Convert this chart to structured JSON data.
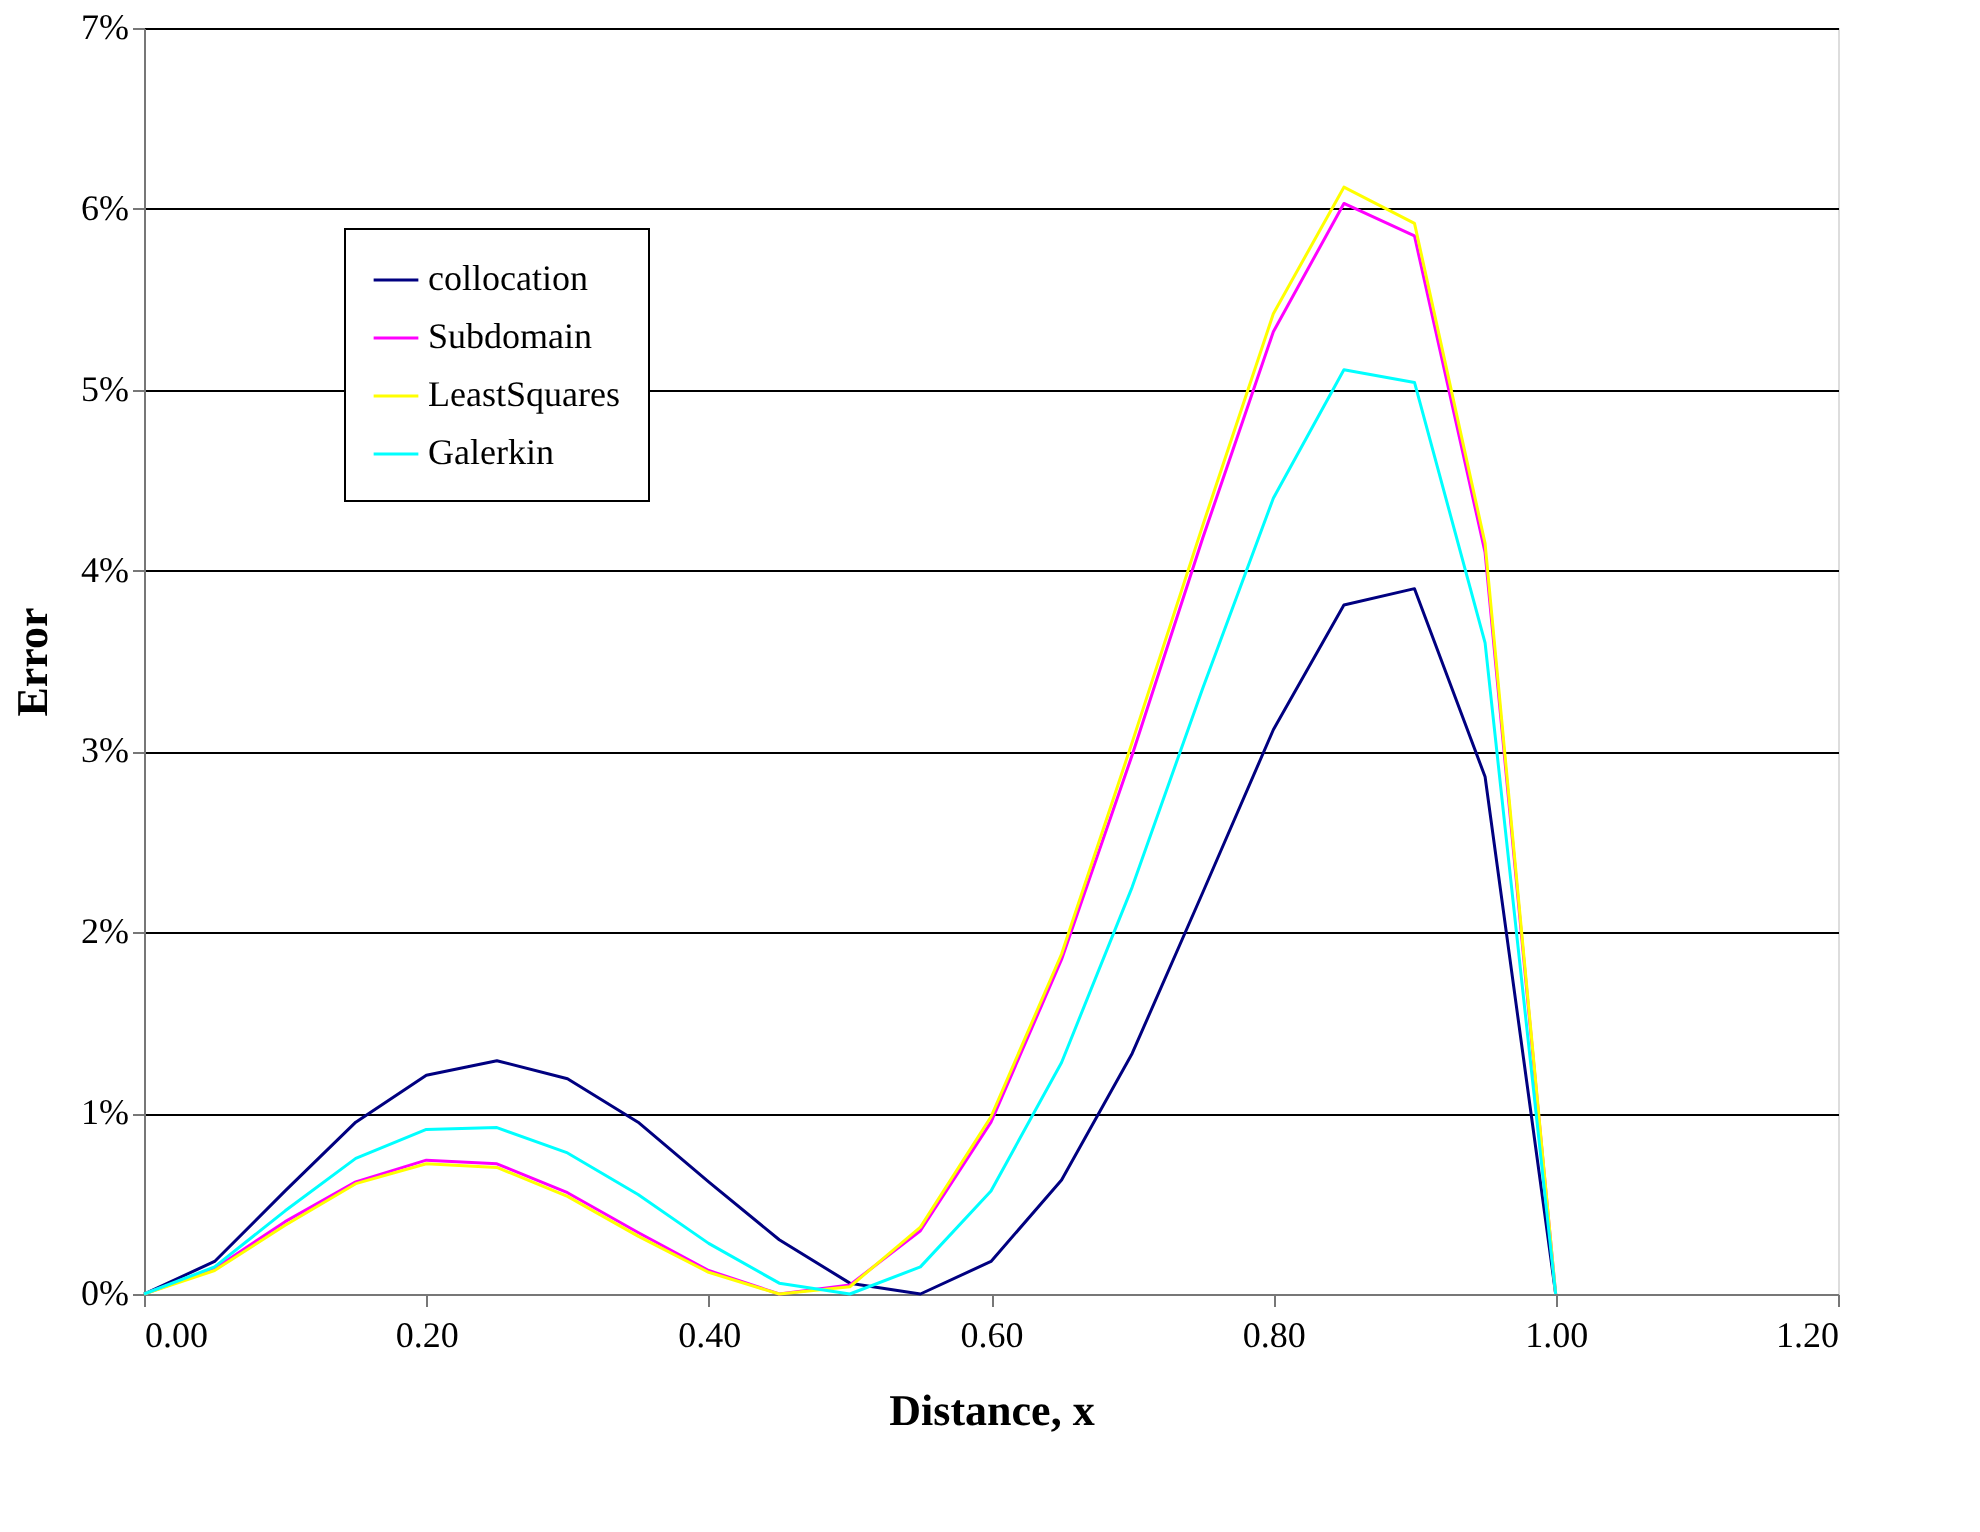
{
  "chart_data": {
    "type": "line",
    "xlabel": "Distance, x",
    "ylabel": "Error",
    "x": [
      0,
      0.05,
      0.1,
      0.15,
      0.2,
      0.25,
      0.3,
      0.35,
      0.4,
      0.45,
      0.5,
      0.55,
      0.6,
      0.65,
      0.7,
      0.75,
      0.8,
      0.85,
      0.9,
      0.95,
      1.0
    ],
    "series": [
      {
        "name": "collocation",
        "color": "#000080",
        "values": [
          0,
          0.18,
          0.57,
          0.95,
          1.21,
          1.29,
          1.19,
          0.95,
          0.62,
          0.3,
          0.06,
          0.0,
          0.18,
          0.63,
          1.33,
          2.22,
          3.12,
          3.81,
          3.9,
          2.86,
          0
        ]
      },
      {
        "name": "Subdomain",
        "color": "#ff00ff",
        "values": [
          0,
          0.14,
          0.4,
          0.62,
          0.74,
          0.72,
          0.56,
          0.34,
          0.13,
          0.0,
          0.05,
          0.35,
          0.95,
          1.85,
          2.98,
          4.18,
          5.32,
          6.03,
          5.85,
          4.1,
          0
        ]
      },
      {
        "name": "LeastSquares",
        "color": "#ffff00",
        "values": [
          0,
          0.13,
          0.38,
          0.61,
          0.72,
          0.7,
          0.54,
          0.32,
          0.12,
          0.0,
          0.04,
          0.37,
          0.98,
          1.88,
          3.05,
          4.25,
          5.42,
          6.12,
          5.92,
          4.15,
          0
        ]
      },
      {
        "name": "Galerkin",
        "color": "#00ffff",
        "values": [
          0,
          0.15,
          0.46,
          0.75,
          0.91,
          0.92,
          0.78,
          0.55,
          0.28,
          0.06,
          0.0,
          0.15,
          0.57,
          1.28,
          2.25,
          3.35,
          4.4,
          5.11,
          5.04,
          3.6,
          0
        ]
      }
    ],
    "xlim": [
      0,
      1.2
    ],
    "xticks": [
      {
        "value": 0,
        "label": "0.00"
      },
      {
        "value": 0.2,
        "label": "0.20"
      },
      {
        "value": 0.4,
        "label": "0.40"
      },
      {
        "value": 0.6,
        "label": "0.60"
      },
      {
        "value": 0.8,
        "label": "0.80"
      },
      {
        "value": 1.0,
        "label": "1.00"
      },
      {
        "value": 1.2,
        "label": "1.20"
      }
    ],
    "ylim": [
      0,
      7
    ],
    "yticks": [
      {
        "value": 0,
        "label": "0%"
      },
      {
        "value": 1,
        "label": "1%"
      },
      {
        "value": 2,
        "label": "2%"
      },
      {
        "value": 3,
        "label": "3%"
      },
      {
        "value": 4,
        "label": "4%"
      },
      {
        "value": 5,
        "label": "5%"
      },
      {
        "value": 6,
        "label": "6%"
      },
      {
        "value": 7,
        "label": "7%"
      }
    ],
    "grid": "y",
    "legend": "top left",
    "marker": "none",
    "line_style": "solid"
  }
}
